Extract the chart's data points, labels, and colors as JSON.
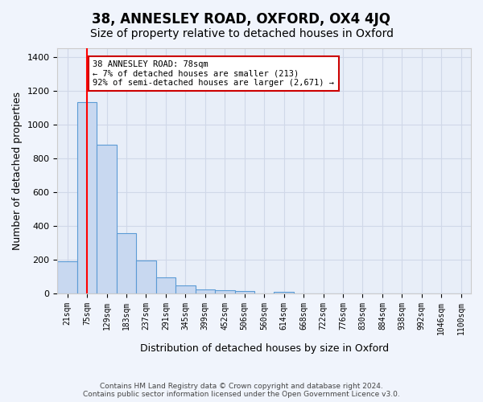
{
  "title_line1": "38, ANNESLEY ROAD, OXFORD, OX4 4JQ",
  "title_line2": "Size of property relative to detached houses in Oxford",
  "xlabel": "Distribution of detached houses by size in Oxford",
  "ylabel": "Number of detached properties",
  "bins": [
    "21sqm",
    "75sqm",
    "129sqm",
    "183sqm",
    "237sqm",
    "291sqm",
    "345sqm",
    "399sqm",
    "452sqm",
    "506sqm",
    "560sqm",
    "614sqm",
    "668sqm",
    "722sqm",
    "776sqm",
    "830sqm",
    "884sqm",
    "938sqm",
    "992sqm",
    "1046sqm",
    "1100sqm"
  ],
  "values": [
    190,
    1130,
    880,
    355,
    195,
    95,
    50,
    22,
    20,
    15,
    0,
    10,
    0,
    0,
    0,
    0,
    0,
    0,
    0,
    0,
    0
  ],
  "bar_color": "#c8d8f0",
  "bar_edge_color": "#5b9bd5",
  "red_line_x": 1,
  "ylim": [
    0,
    1450
  ],
  "yticks": [
    0,
    200,
    400,
    600,
    800,
    1000,
    1200,
    1400
  ],
  "annotation_title": "38 ANNESLEY ROAD: 78sqm",
  "annotation_line1": "← 7% of detached houses are smaller (213)",
  "annotation_line2": "92% of semi-detached houses are larger (2,671) →",
  "annotation_box_color": "#ffffff",
  "annotation_box_edge": "#cc0000",
  "footnote1": "Contains HM Land Registry data © Crown copyright and database right 2024.",
  "footnote2": "Contains public sector information licensed under the Open Government Licence v3.0.",
  "bg_color": "#e8eef8",
  "grid_color": "#d0d8e8",
  "title1_fontsize": 12,
  "title2_fontsize": 10,
  "xlabel_fontsize": 9,
  "ylabel_fontsize": 9,
  "tick_fontsize": 7
}
